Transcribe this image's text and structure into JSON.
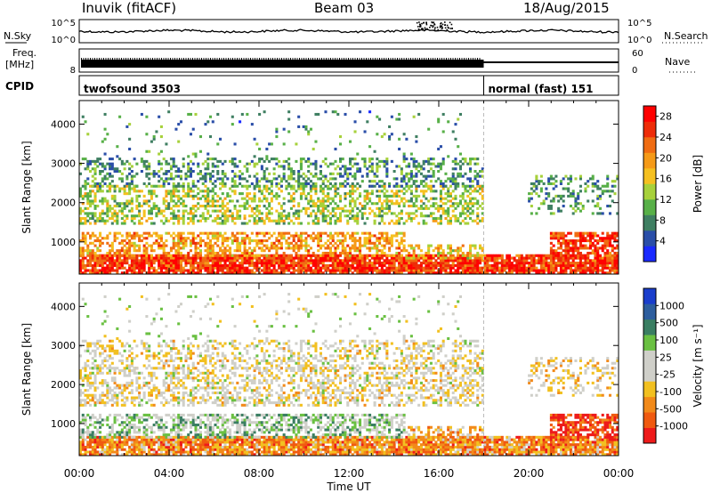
{
  "header": {
    "title": "Inuvik (fitACF)",
    "beam": "Beam 03",
    "date": "18/Aug/2015"
  },
  "strips": {
    "noise_left": "N.Sky",
    "noise_right": "N.Search",
    "noise_ticks": [
      "10^5",
      "10^0"
    ],
    "freq_label_1": "Freq.",
    "freq_label_2": "[MHz]",
    "freq_ticks": [
      "8"
    ],
    "nave_label": "Nave",
    "nave_ticks": [
      "60",
      "0"
    ],
    "cpid_label": "CPID",
    "cpid_segments": [
      {
        "label": "twofsound 3503",
        "start_hour": 0,
        "end_hour": 18
      },
      {
        "label": "normal (fast) 151",
        "start_hour": 18,
        "end_hour": 24
      }
    ],
    "mode_change_hour": 18
  },
  "colors": {
    "power": [
      "#1a2aff",
      "#2a4ea8",
      "#3f7f62",
      "#58b048",
      "#a7d13b",
      "#f5c020",
      "#f59a18",
      "#f06c12",
      "#ee2c08",
      "#ff0000"
    ],
    "velocity": [
      "#ee1a1a",
      "#f05a10",
      "#f28a1a",
      "#f2c020",
      "#cfcfc9",
      "#cfcfc9",
      "#6ac042",
      "#3a7e62",
      "#2d5e9e",
      "#1a3ecc"
    ]
  },
  "chart_data": [
    {
      "type": "heatmap",
      "ylabel": "Slant Range [km]",
      "xlabel": "",
      "x_ticks": [],
      "y_ticks": [
        "1000",
        "2000",
        "3000",
        "4000"
      ],
      "y_tick_values": [
        1000,
        2000,
        3000,
        4000
      ],
      "ylim": [
        180,
        4600
      ],
      "xlim_hours": [
        0,
        24
      ],
      "colorbar": {
        "label": "Power [dB]",
        "ticks": [
          "4",
          "8",
          "12",
          "16",
          "20",
          "24",
          "28"
        ],
        "range": [
          0,
          30
        ]
      },
      "bands": [
        {
          "start": 0,
          "end": 24,
          "lo": 180,
          "hi": 640,
          "density": 0.85,
          "level": 0.85
        },
        {
          "start": 0,
          "end": 14.5,
          "lo": 640,
          "hi": 1250,
          "density": 0.55,
          "level": 0.65
        },
        {
          "start": 14.5,
          "end": 18,
          "lo": 560,
          "hi": 900,
          "density": 0.5,
          "level": 0.55
        },
        {
          "start": 21,
          "end": 24,
          "lo": 560,
          "hi": 1250,
          "density": 0.65,
          "level": 0.85
        },
        {
          "start": 0,
          "end": 18,
          "lo": 1500,
          "hi": 2400,
          "density": 0.45,
          "level": 0.45
        },
        {
          "start": 0,
          "end": 18,
          "lo": 2400,
          "hi": 3100,
          "density": 0.35,
          "level": 0.3
        },
        {
          "start": 20,
          "end": 24,
          "lo": 1750,
          "hi": 2700,
          "density": 0.3,
          "level": 0.3
        },
        {
          "start": 0,
          "end": 17,
          "lo": 3100,
          "hi": 4300,
          "density": 0.04,
          "level": 0.25
        }
      ]
    },
    {
      "type": "heatmap",
      "ylabel": "Slant Range [km]",
      "xlabel": "Time UT",
      "x_ticks": [
        "00:00",
        "04:00",
        "08:00",
        "12:00",
        "16:00",
        "20:00",
        "00:00"
      ],
      "x_tick_hours": [
        0,
        4,
        8,
        12,
        16,
        20,
        24
      ],
      "y_ticks": [
        "1000",
        "2000",
        "3000",
        "4000"
      ],
      "y_tick_values": [
        1000,
        2000,
        3000,
        4000
      ],
      "ylim": [
        180,
        4600
      ],
      "xlim_hours": [
        0,
        24
      ],
      "colorbar": {
        "label": "Velocity [m s⁻¹]",
        "ticks": [
          "-1000",
          "-500",
          "-100",
          "-25",
          "25",
          "100",
          "500",
          "1000"
        ]
      },
      "bands": [
        {
          "start": 0,
          "end": 24,
          "lo": 180,
          "hi": 640,
          "density": 0.85,
          "level": 0.25
        },
        {
          "start": 0,
          "end": 14.5,
          "lo": 640,
          "hi": 1250,
          "density": 0.55,
          "level": 0.6
        },
        {
          "start": 14.5,
          "end": 18,
          "lo": 560,
          "hi": 900,
          "density": 0.5,
          "level": 0.3
        },
        {
          "start": 21,
          "end": 24,
          "lo": 560,
          "hi": 1250,
          "density": 0.65,
          "level": 0.1
        },
        {
          "start": 0,
          "end": 18,
          "lo": 1500,
          "hi": 2400,
          "density": 0.45,
          "level": 0.45
        },
        {
          "start": 0,
          "end": 18,
          "lo": 2400,
          "hi": 3100,
          "density": 0.35,
          "level": 0.45
        },
        {
          "start": 20,
          "end": 24,
          "lo": 1750,
          "hi": 2700,
          "density": 0.3,
          "level": 0.4
        },
        {
          "start": 0,
          "end": 17,
          "lo": 3100,
          "hi": 4300,
          "density": 0.04,
          "level": 0.5
        }
      ]
    }
  ]
}
